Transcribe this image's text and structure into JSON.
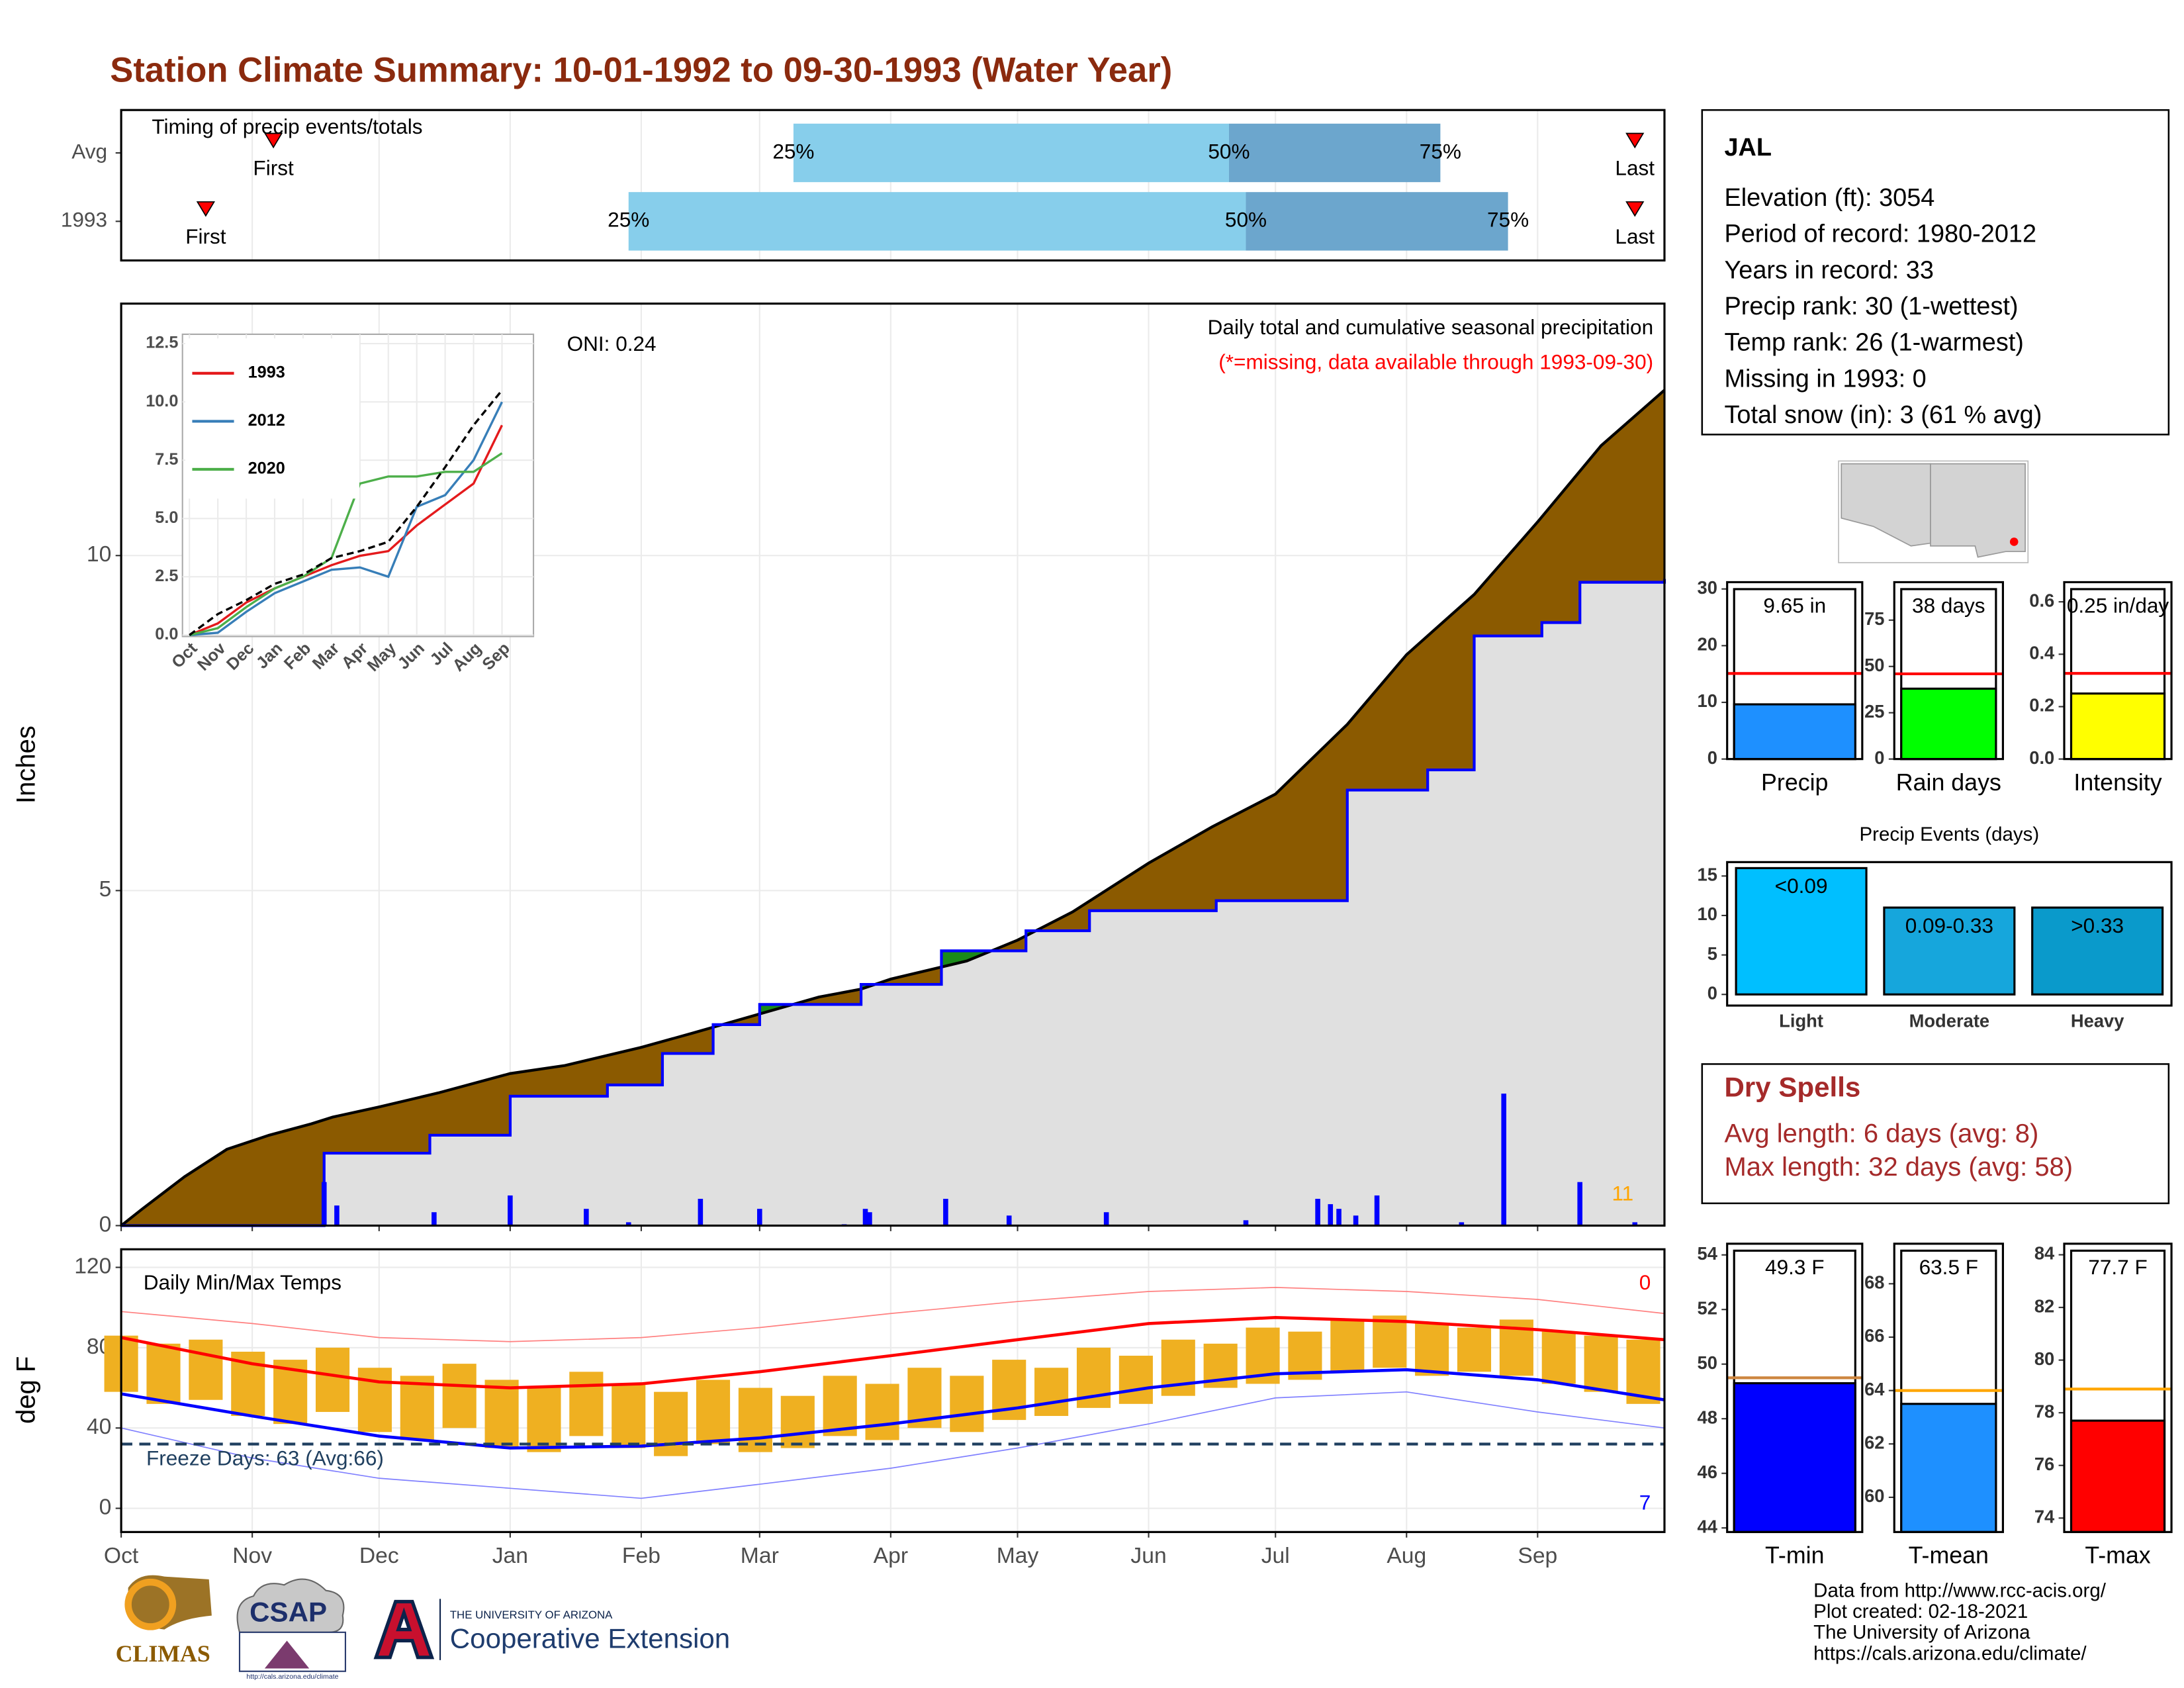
{
  "title": "Station Climate Summary: 10-01-1992 to 09-30-1993 (Water Year)",
  "chart_data": [
    {
      "type": "timing",
      "title": "Timing of precip events/totals",
      "categories": [
        "Avg",
        "1993"
      ],
      "xlim": [
        0,
        365
      ],
      "xticks": [
        0,
        31,
        61,
        92,
        123,
        151,
        182,
        212,
        243,
        273,
        304,
        335
      ],
      "first": [
        36,
        20
      ],
      "p25": [
        159,
        120
      ],
      "p50": [
        262,
        266
      ],
      "p75": [
        312,
        328
      ],
      "last": [
        358,
        358
      ],
      "labels": {
        "first": "First",
        "p25": "25%",
        "p50": "50%",
        "p75": "75%",
        "last": "Last"
      },
      "colors": [
        "#87ceeb",
        "#6ca6cd"
      ],
      "marker_color": "#ff0000"
    },
    {
      "type": "cumulative_precip",
      "title": "Daily total and cumulative seasonal precipitation",
      "subtitle": "(*=missing, data available through 1993-09-30)",
      "annotation": "ONI: 0.24",
      "ylabel": "Inches",
      "xlim": [
        0,
        365
      ],
      "ylim": [
        0,
        13.76
      ],
      "yticks": [
        0,
        5,
        10
      ],
      "xticks": [
        0,
        31,
        61,
        92,
        123,
        151,
        182,
        212,
        243,
        273,
        304,
        335
      ],
      "series": [
        {
          "x": [
            0,
            5,
            15,
            25,
            35,
            45,
            50,
            61,
            75,
            92,
            105,
            123,
            135,
            151,
            165,
            175,
            182,
            200,
            212,
            225,
            243,
            258,
            273,
            290,
            304,
            320,
            335,
            350,
            365
          ],
          "values": [
            0,
            0.25,
            0.73,
            1.14,
            1.35,
            1.52,
            1.62,
            1.77,
            1.98,
            2.27,
            2.39,
            2.66,
            2.87,
            3.16,
            3.41,
            3.53,
            3.68,
            3.95,
            4.26,
            4.68,
            5.41,
            5.95,
            6.44,
            7.48,
            8.52,
            9.42,
            10.5,
            11.64,
            12.47
          ],
          "color": "#000000"
        },
        {
          "x": [
            0,
            48,
            73,
            92,
            115,
            128,
            140,
            151,
            175,
            194,
            214,
            229,
            259,
            290,
            309,
            320,
            336,
            345,
            365
          ],
          "values": [
            0,
            1.08,
            1.35,
            1.93,
            2.1,
            2.57,
            3.0,
            3.3,
            3.6,
            4.1,
            4.4,
            4.7,
            4.85,
            6.5,
            6.8,
            8.8,
            9.0,
            9.6,
            9.65
          ],
          "color": "#0000ff"
        }
      ],
      "daily": {
        "x": [
          48,
          51,
          74,
          92,
          110,
          120,
          137,
          151,
          171,
          176,
          177,
          195,
          210,
          233,
          266,
          283,
          286,
          288,
          292,
          297,
          317,
          327,
          345,
          358
        ],
        "values": [
          0.65,
          0.3,
          0.2,
          0.45,
          0.25,
          0.05,
          0.4,
          0.25,
          0.02,
          0.25,
          0.2,
          0.4,
          0.15,
          0.2,
          0.08,
          0.4,
          0.32,
          0.25,
          0.15,
          0.45,
          0.05,
          1.97,
          0.65,
          0.05
        ],
        "color": "#0000ff"
      },
      "fills": {
        "above": "#8b5a00",
        "below": "#1a8a1a",
        "base": "#e0e0e0"
      },
      "count": 11,
      "count_color": "#ffa500"
    },
    {
      "type": "line",
      "categories": [
        "Oct",
        "Nov",
        "Dec",
        "Jan",
        "Feb",
        "Mar",
        "Apr",
        "May",
        "Jun",
        "Jul",
        "Aug",
        "Sep"
      ],
      "ylim": [
        0,
        12.9
      ],
      "yticks": [
        {
          "value": 0,
          "label": "0.0"
        },
        2.5,
        {
          "value": 5,
          "label": "5.0"
        },
        7.5,
        {
          "value": 10,
          "label": "10.0"
        },
        12.5
      ],
      "series": [
        {
          "name": "1993",
          "color": "#e41a1c",
          "values": [
            0,
            0.5,
            1.4,
            2.0,
            2.5,
            3.0,
            3.4,
            3.6,
            4.7,
            5.6,
            6.5,
            9.0
          ]
        },
        {
          "name": "2012",
          "color": "#377eb8",
          "values": [
            0,
            0.1,
            1.0,
            1.8,
            2.3,
            2.8,
            2.9,
            2.5,
            5.5,
            6.0,
            7.5,
            10.0
          ]
        },
        {
          "name": "2020",
          "color": "#4daf4a",
          "values": [
            0,
            0.3,
            1.2,
            2.0,
            2.5,
            3.3,
            6.5,
            6.8,
            6.8,
            7.0,
            7.0,
            7.8
          ]
        },
        {
          "color": "#000000",
          "dashed": true,
          "values": [
            0,
            0.9,
            1.5,
            2.2,
            2.6,
            3.3,
            3.6,
            4.0,
            5.5,
            7.2,
            9.0,
            10.5
          ]
        }
      ]
    },
    {
      "type": "temps",
      "title": "Daily Min/Max Temps",
      "ylabel": "deg F",
      "xlim": [
        0,
        365
      ],
      "ylim": [
        -11.8,
        129
      ],
      "yticks": [
        0,
        40,
        80,
        120
      ],
      "xticks": [
        {
          "value": 0,
          "label": "Oct"
        },
        {
          "value": 31,
          "label": "Nov"
        },
        {
          "value": 61,
          "label": "Dec"
        },
        {
          "value": 92,
          "label": "Jan"
        },
        {
          "value": 123,
          "label": "Feb"
        },
        {
          "value": 151,
          "label": "Mar"
        },
        {
          "value": 182,
          "label": "Apr"
        },
        {
          "value": 212,
          "label": "May"
        },
        {
          "value": 243,
          "label": "Jun"
        },
        {
          "value": 273,
          "label": "Jul"
        },
        {
          "value": 304,
          "label": "Aug"
        },
        {
          "value": 335,
          "label": "Sep"
        }
      ],
      "daily": {
        "x": [
          0,
          10,
          20,
          30,
          40,
          50,
          60,
          70,
          80,
          90,
          100,
          110,
          120,
          130,
          140,
          150,
          160,
          170,
          180,
          190,
          200,
          210,
          220,
          230,
          240,
          250,
          260,
          270,
          280,
          290,
          300,
          310,
          320,
          330,
          340,
          350,
          360
        ],
        "max": [
          86,
          82,
          84,
          78,
          74,
          80,
          70,
          66,
          72,
          64,
          60,
          68,
          62,
          58,
          64,
          60,
          56,
          66,
          62,
          70,
          66,
          74,
          70,
          80,
          76,
          84,
          82,
          90,
          88,
          94,
          96,
          92,
          90,
          94,
          88,
          86,
          84
        ],
        "min": [
          58,
          52,
          54,
          46,
          42,
          48,
          38,
          34,
          40,
          30,
          28,
          36,
          30,
          26,
          32,
          28,
          30,
          36,
          34,
          40,
          38,
          44,
          46,
          50,
          52,
          56,
          60,
          62,
          64,
          68,
          70,
          66,
          68,
          66,
          62,
          58,
          52
        ],
        "color": "#efb021"
      },
      "line_x": [
        0,
        31,
        61,
        92,
        123,
        151,
        182,
        212,
        243,
        273,
        304,
        335,
        365
      ],
      "series": [
        {
          "color": "#ff0000",
          "width": 2.2,
          "values": [
            85,
            72,
            63,
            60,
            62,
            68,
            76,
            84,
            92,
            95,
            93,
            89,
            84
          ]
        },
        {
          "color": "#0000ff",
          "width": 2.2,
          "values": [
            57,
            46,
            36,
            30,
            31,
            35,
            42,
            50,
            60,
            67,
            69,
            64,
            54
          ]
        },
        {
          "color": "#ff8080",
          "width": 0.8,
          "values": [
            98,
            92,
            85,
            83,
            85,
            90,
            97,
            103,
            108,
            110,
            108,
            104,
            97
          ]
        },
        {
          "color": "#8080ff",
          "width": 0.8,
          "values": [
            40,
            25,
            15,
            10,
            5,
            12,
            20,
            30,
            42,
            55,
            58,
            48,
            40
          ]
        }
      ],
      "freeze": {
        "value": 32,
        "label": "Freeze Days: 63 (Avg:66)",
        "color": "#1f3f5f"
      },
      "counts": [
        {
          "value": 0,
          "color": "#ff0000"
        },
        {
          "value": 7,
          "color": "#0000ff"
        }
      ]
    },
    {
      "type": "summary_bar",
      "categories": [
        "Precip"
      ],
      "values": [
        9.65
      ],
      "value_labels": [
        "9.65 in"
      ],
      "color": "#1e90ff",
      "avg": 15.1,
      "avg_color": "#ff0000",
      "ylim": [
        0,
        31.2
      ],
      "yticks": [
        0,
        10,
        20,
        30
      ]
    },
    {
      "type": "summary_bar",
      "categories": [
        "Rain days"
      ],
      "values": [
        38
      ],
      "value_labels": [
        "38 days"
      ],
      "color": "#00ff00",
      "avg": 46,
      "avg_color": "#ff0000",
      "ylim": [
        0,
        95.5
      ],
      "yticks": [
        0,
        25,
        50,
        75
      ]
    },
    {
      "type": "summary_bar",
      "categories": [
        "Intensity"
      ],
      "values": [
        0.25
      ],
      "value_labels": [
        "0.25 in/day"
      ],
      "color": "#ffff00",
      "avg": 0.327,
      "avg_color": "#ff0000",
      "ylim": [
        0,
        0.675
      ],
      "yticks": [
        {
          "value": 0,
          "label": "0.0"
        },
        0.2,
        0.4,
        0.6
      ]
    },
    {
      "type": "bar",
      "title": "Precip Events (days)",
      "categories": [
        "Light",
        "Moderate",
        "Heavy"
      ],
      "values": [
        16,
        11,
        11
      ],
      "range_labels": [
        "<0.09",
        "0.09-0.33",
        ">0.33"
      ],
      "colors": [
        "#00bfff",
        "#16a6dc",
        "#0a9acb"
      ],
      "ylim": [
        -1.41,
        16.76
      ],
      "yticks": [
        0,
        5,
        10,
        15
      ]
    },
    {
      "type": "summary_bar",
      "categories": [
        "T-min"
      ],
      "values": [
        49.3
      ],
      "value_labels": [
        "49.3 F"
      ],
      "color": "#0000ff",
      "avg": 49.5,
      "avg_color": "#cd853f",
      "ylim": [
        43.85,
        54.41
      ],
      "yticks": [
        44,
        46,
        48,
        50,
        52,
        54
      ]
    },
    {
      "type": "summary_bar",
      "categories": [
        "T-mean"
      ],
      "values": [
        63.5
      ],
      "value_labels": [
        "63.5 F"
      ],
      "color": "#1e90ff",
      "avg": 64.0,
      "avg_color": "#ffa500",
      "ylim": [
        58.7,
        69.5
      ],
      "yticks": [
        60,
        62,
        64,
        66,
        68
      ]
    },
    {
      "type": "summary_bar",
      "categories": [
        "T-max"
      ],
      "values": [
        77.7
      ],
      "value_labels": [
        "77.7 F"
      ],
      "color": "#ff0000",
      "avg": 78.9,
      "avg_color": "#ffa500",
      "ylim": [
        73.47,
        84.42
      ],
      "yticks": [
        74,
        76,
        78,
        80,
        82,
        84
      ]
    }
  ],
  "station": {
    "name": "JAL",
    "lines": [
      "Elevation (ft): 3054",
      "Period of record: 1980-2012",
      "Years in record: 33",
      "Precip rank: 30 (1-wettest)",
      "Temp rank: 26 (1-warmest)",
      "Missing in 1993: 0",
      "Total snow (in): 3 (61 % avg)"
    ]
  },
  "dry_spells": {
    "title": "Dry Spells",
    "lines": [
      "Avg length: 6 days (avg: 8)",
      "Max length: 32 days (avg: 58)"
    ]
  },
  "footer": [
    "Data from http://www.rcc-acis.org/",
    "Plot created: 02-18-2021",
    "The University of Arizona",
    "https://cals.arizona.edu/climate/"
  ],
  "logos": {
    "climas": "CLIMAS",
    "csap": "CSAP",
    "csap_url": "http://cals.arizona.edu/climate",
    "university": "THE UNIVERSITY OF ARIZONA",
    "extension": "Cooperative Extension"
  }
}
